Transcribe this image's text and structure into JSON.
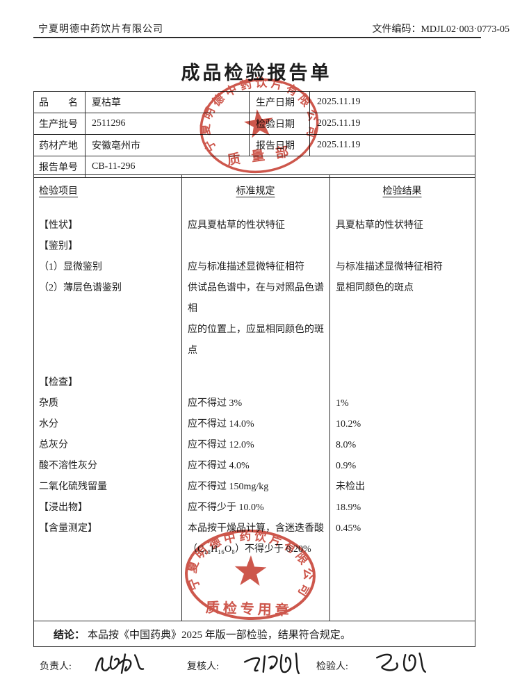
{
  "page": {
    "company": "宁夏明德中药饮片有限公司",
    "doc_code": "文件编码：MDJL02·003·0773-05",
    "title": "成品检验报告单"
  },
  "info_table": {
    "rows": [
      {
        "label": "品　　名",
        "value": "夏枯草",
        "label2": "生产日期",
        "value2": "2025.11.19"
      },
      {
        "label": "生产批号",
        "value": "2511296",
        "label2": "检验日期",
        "value2": "2025.11.19"
      },
      {
        "label": "药材产地",
        "value": "安徽亳州市",
        "label2": "报告日期",
        "value2": "2025.11.19"
      },
      {
        "label": "报告单号",
        "value": "CB-11-296"
      }
    ]
  },
  "test_table": {
    "headers": [
      "检验项目",
      "标准规定",
      "检验结果"
    ],
    "rows": [
      {
        "item": "【性状】",
        "std": [
          "应具夏枯草的性状特征"
        ],
        "res": "具夏枯草的性状特征"
      },
      {
        "item": "【鉴别】",
        "std": [],
        "res": ""
      },
      {
        "item": "（1）显微鉴别",
        "std": [
          "应与标准描述显微特征相符"
        ],
        "res": "与标准描述显微特征相符"
      },
      {
        "item": "（2）薄层色谱鉴别",
        "std": [
          "供试品色谱中，在与对照品色谱相",
          "应的位置上，应显相同颜色的斑点"
        ],
        "res": "显相同颜色的斑点"
      },
      {
        "item": "【检查】",
        "std": [],
        "res": "",
        "gap": true
      },
      {
        "item": "杂质",
        "std": [
          "应不得过 3%"
        ],
        "res": "1%"
      },
      {
        "item": "水分",
        "std": [
          "应不得过 14.0%"
        ],
        "res": "10.2%"
      },
      {
        "item": "总灰分",
        "std": [
          "应不得过 12.0%"
        ],
        "res": "8.0%"
      },
      {
        "item": "酸不溶性灰分",
        "std": [
          "应不得过 4.0%"
        ],
        "res": "0.9%"
      },
      {
        "item": "二氧化硫残留量",
        "std": [
          "应不得过 150mg/kg"
        ],
        "res": "未检出"
      },
      {
        "item": "【浸出物】",
        "std": [
          "应不得少于 10.0%"
        ],
        "res": "18.9%"
      },
      {
        "item": "【含量测定】",
        "std": [
          "本品按干燥品计算，含迷迭香酸",
          "（C₁₈H₁₆O₈）不得少于 0.20%"
        ],
        "res": "0.45%"
      }
    ]
  },
  "conclusion": {
    "label": "结论：",
    "text": "本品按《中国药典》2025 年版一部检验，结果符合规定。"
  },
  "signatures": {
    "roles": [
      "负责人:",
      "复核人:",
      "检验人:"
    ]
  },
  "stamps": {
    "color": "#c5392c",
    "ring_text": "宁夏明德中药饮片有限公司",
    "top_label": "质量部",
    "bottom_label": "质检专用章"
  }
}
